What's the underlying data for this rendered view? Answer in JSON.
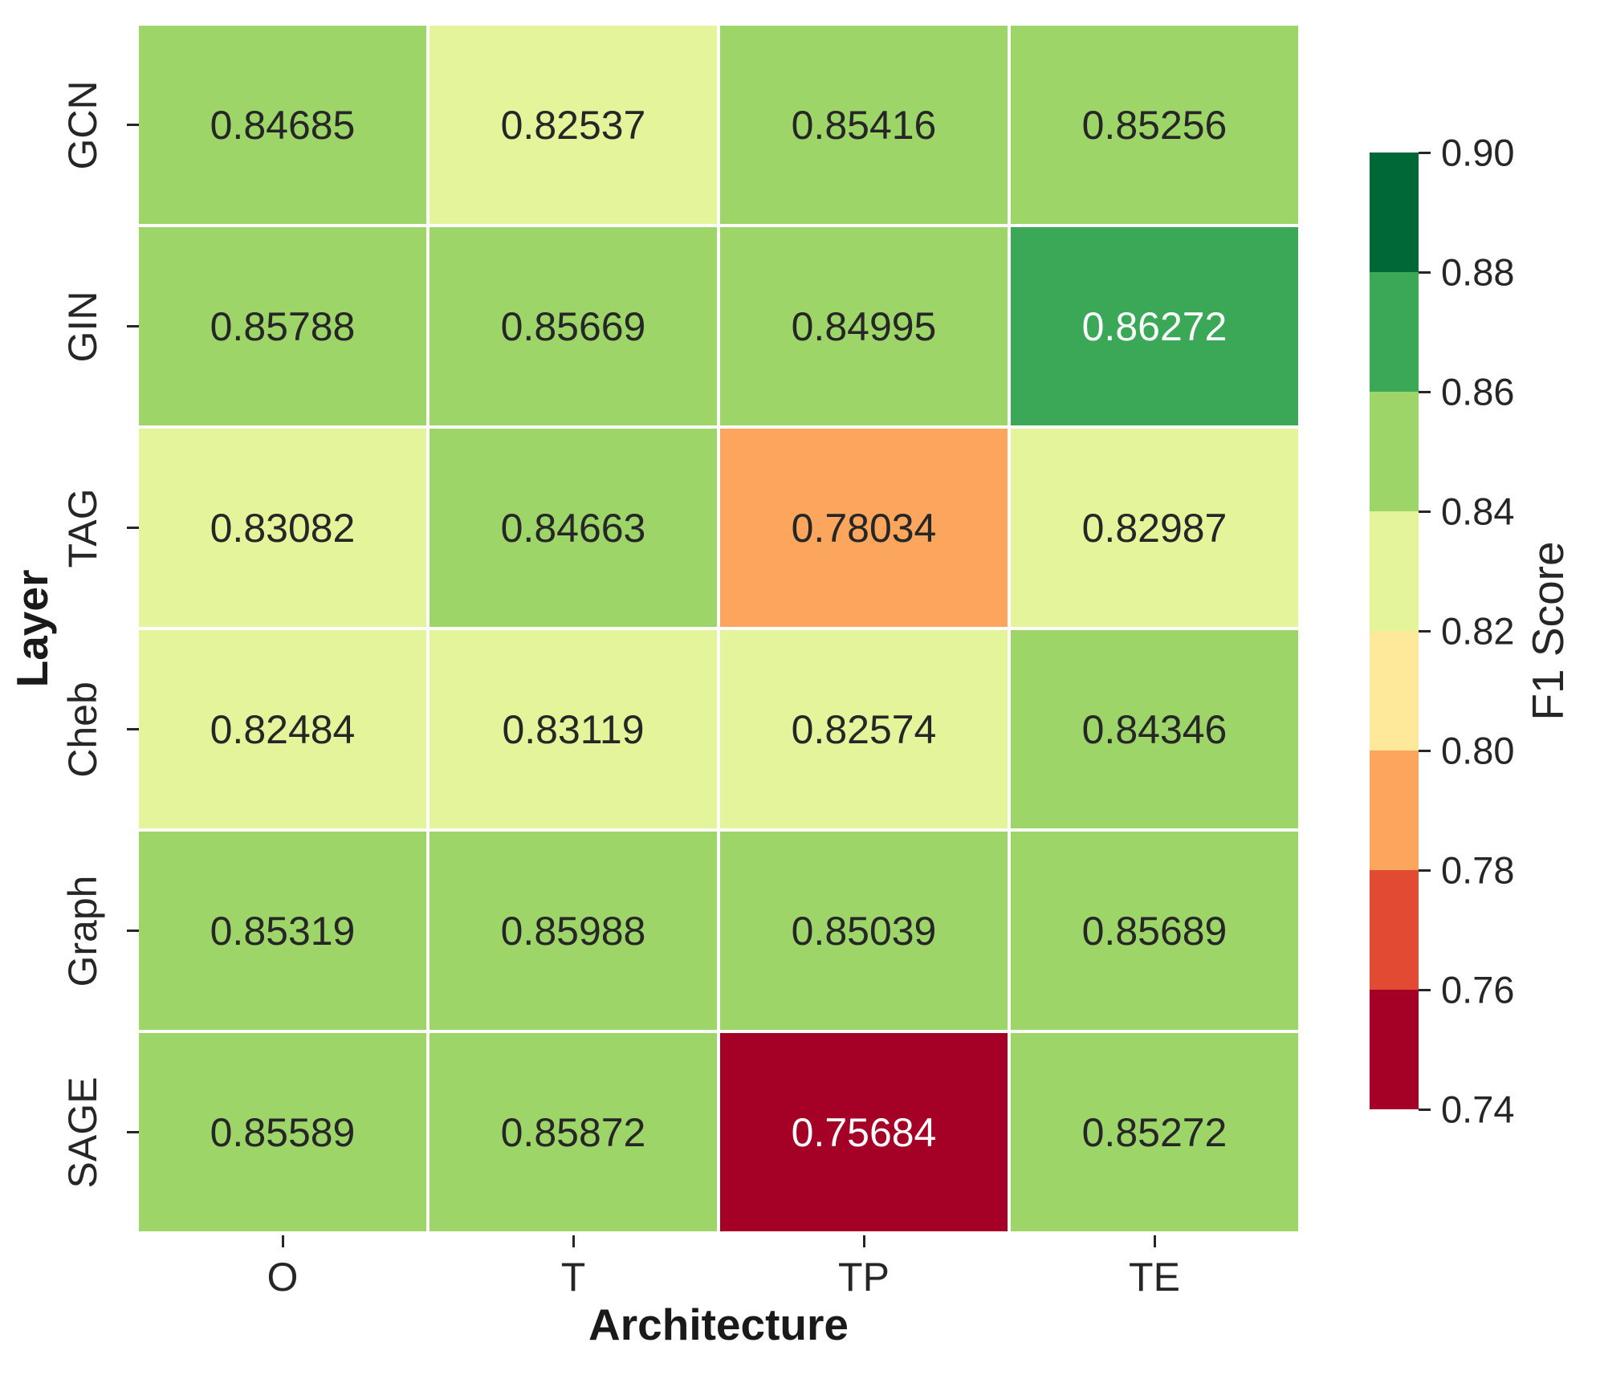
{
  "figure": {
    "x_axis_title": "Architecture",
    "y_axis_title": "Layer",
    "colorbar_title": "F1 Score"
  },
  "chart_data": {
    "type": "heatmap",
    "title": "",
    "xlabel": "Architecture",
    "ylabel": "Layer",
    "colorbar_label": "F1 Score",
    "x_categories": [
      "O",
      "T",
      "TP",
      "TE"
    ],
    "y_categories": [
      "GCN",
      "GIN",
      "TAG",
      "Cheb",
      "Graph",
      "SAGE"
    ],
    "values": [
      [
        0.84685,
        0.82537,
        0.85416,
        0.85256
      ],
      [
        0.85788,
        0.85669,
        0.84995,
        0.86272
      ],
      [
        0.83082,
        0.84663,
        0.78034,
        0.82987
      ],
      [
        0.82484,
        0.83119,
        0.82574,
        0.84346
      ],
      [
        0.85319,
        0.85988,
        0.85039,
        0.85689
      ],
      [
        0.85589,
        0.85872,
        0.75684,
        0.85272
      ]
    ],
    "annotation_decimals": 5,
    "vmin": 0.74,
    "vmax": 0.9,
    "bin_size": 0.02,
    "palette_low_to_high": [
      "#a50026",
      "#e34a33",
      "#fca55d",
      "#fee99a",
      "#e4f49a",
      "#9dd569",
      "#3ba858",
      "#006837"
    ],
    "colorbar_ticks": [
      "0.90",
      "0.88",
      "0.86",
      "0.84",
      "0.82",
      "0.80",
      "0.78",
      "0.76",
      "0.74"
    ],
    "annot_dark_text_color": "#262626",
    "annot_light_text_color": "#ffffff",
    "grid": false,
    "legend_position": "right"
  }
}
